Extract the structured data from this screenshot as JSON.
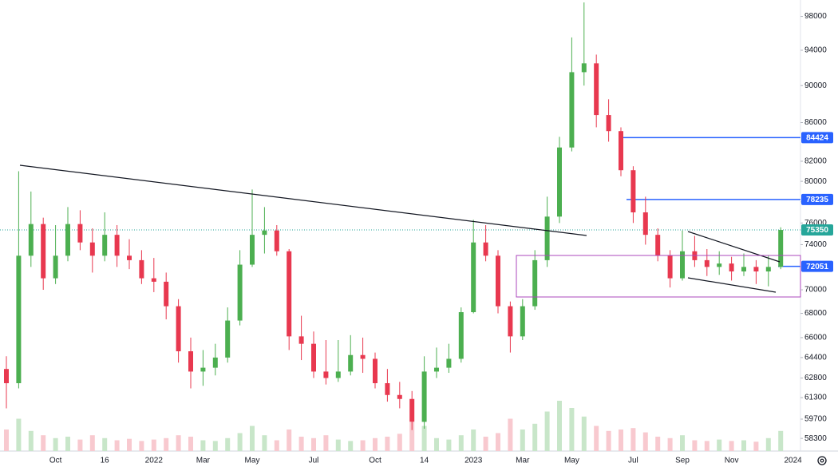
{
  "chart_data": {
    "type": "candlestick",
    "log_scale": true,
    "up_color": "#4caf50",
    "down_color": "#e8384f",
    "volume_up_color": "#c8e6c9",
    "volume_down_color": "#f8c9cf",
    "categories": [
      null,
      null,
      null,
      null,
      "Oct",
      null,
      null,
      null,
      "16",
      null,
      null,
      null,
      "2022",
      null,
      null,
      null,
      "Mar",
      null,
      null,
      null,
      "May",
      null,
      null,
      null,
      null,
      "Jul",
      null,
      null,
      null,
      null,
      "Oct",
      null,
      null,
      null,
      "14",
      null,
      null,
      null,
      "2023",
      null,
      null,
      null,
      "Mar",
      null,
      null,
      null,
      "May",
      null,
      null,
      null,
      null,
      "Jul",
      null,
      null,
      null,
      "Sep",
      null,
      null,
      null,
      "Nov",
      null,
      null,
      null,
      null,
      "2024"
    ],
    "open": [
      63500,
      62400,
      73000,
      75900,
      71000,
      73000,
      75900,
      74200,
      73000,
      74900,
      73000,
      72600,
      71000,
      70700,
      68600,
      64900,
      63300,
      63600,
      64400,
      67400,
      72200,
      74900,
      75300,
      73400,
      66100,
      65500,
      63300,
      62800,
      63300,
      64600,
      64300,
      62400,
      61500,
      61200,
      59500,
      63300,
      63600,
      64300,
      68100,
      74200,
      73000,
      68600,
      66100,
      68600,
      72600,
      76600,
      83400,
      91500,
      92500,
      86800,
      85100,
      81100,
      77000,
      74900,
      73000,
      71000,
      73400,
      72600,
      72000,
      72300,
      71600,
      72000,
      71600,
      72000,
      null
    ],
    "high": [
      64500,
      81000,
      79000,
      76500,
      75800,
      77500,
      77200,
      75500,
      77000,
      75800,
      74500,
      73500,
      72800,
      71500,
      69200,
      66000,
      65000,
      65500,
      68500,
      73500,
      79200,
      77500,
      75800,
      73600,
      67800,
      66500,
      65800,
      65800,
      66200,
      66000,
      64800,
      63500,
      62500,
      61800,
      64500,
      65200,
      65500,
      68500,
      76300,
      75800,
      73500,
      69000,
      69200,
      73500,
      78500,
      84500,
      95500,
      99700,
      93500,
      88500,
      85500,
      81500,
      78500,
      75500,
      73500,
      75300,
      74800,
      73600,
      73400,
      72900,
      73200,
      72600,
      73000,
      75600,
      null
    ],
    "low": [
      60500,
      62000,
      72000,
      70000,
      70500,
      72500,
      73500,
      71500,
      72500,
      72000,
      71800,
      70500,
      69800,
      67500,
      64000,
      62000,
      62200,
      63000,
      64000,
      67000,
      72000,
      73200,
      73000,
      65000,
      64200,
      62800,
      62300,
      62500,
      63000,
      63200,
      62000,
      61000,
      60500,
      58900,
      59000,
      62800,
      63200,
      64000,
      68000,
      72500,
      68000,
      64800,
      65800,
      68300,
      72000,
      76000,
      83000,
      90000,
      85500,
      84000,
      80500,
      76000,
      74000,
      72500,
      70200,
      70800,
      72000,
      71200,
      71300,
      70800,
      71200,
      70500,
      70300,
      71800,
      null
    ],
    "close": [
      62400,
      73000,
      75900,
      71000,
      73000,
      75900,
      74200,
      73000,
      74900,
      73000,
      72600,
      71000,
      70700,
      68600,
      64900,
      63300,
      63600,
      64400,
      67400,
      72200,
      74900,
      75300,
      73400,
      66100,
      65500,
      63300,
      62800,
      63300,
      64600,
      64300,
      62400,
      61500,
      61200,
      59500,
      63300,
      63600,
      64300,
      68100,
      74200,
      73000,
      68600,
      66100,
      68600,
      72600,
      76600,
      83400,
      91500,
      92500,
      86800,
      85100,
      81100,
      77000,
      74900,
      73000,
      71000,
      73400,
      72600,
      72000,
      72300,
      71600,
      72000,
      71600,
      72000,
      75350,
      null
    ],
    "volume": [
      30,
      45,
      28,
      22,
      18,
      20,
      16,
      22,
      18,
      15,
      17,
      14,
      16,
      18,
      22,
      20,
      15,
      14,
      18,
      25,
      35,
      22,
      15,
      30,
      20,
      18,
      22,
      16,
      14,
      15,
      18,
      20,
      24,
      40,
      35,
      18,
      16,
      22,
      30,
      20,
      25,
      45,
      30,
      38,
      55,
      70,
      60,
      48,
      35,
      28,
      30,
      32,
      26,
      20,
      18,
      22,
      15,
      14,
      16,
      14,
      15,
      13,
      18,
      28,
      null
    ],
    "volume_lim": [
      0,
      100
    ],
    "ylim": [
      57400,
      100000
    ],
    "yticks": [
      98000,
      94000,
      90000,
      86000,
      82000,
      80000,
      78000,
      76000,
      74000,
      72000,
      70000,
      68000,
      66000,
      64400,
      62800,
      61300,
      59700,
      58300
    ],
    "price_lines": [
      {
        "value": 84424,
        "color": "#2962ff",
        "style": "solid"
      },
      {
        "value": 78235,
        "color": "#2962ff",
        "style": "solid"
      },
      {
        "value": 75350,
        "color": "#26a69a",
        "style": "dotted"
      },
      {
        "value": 72051,
        "color": "#2962ff",
        "style": "solid"
      }
    ]
  }
}
